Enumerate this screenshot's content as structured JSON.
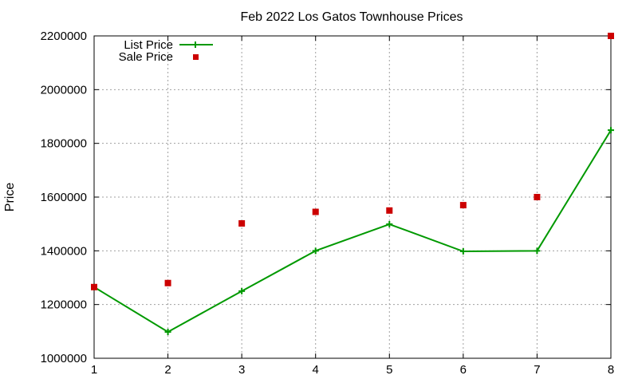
{
  "chart_data": {
    "type": "line",
    "title": "Feb 2022 Los Gatos Townhouse Prices",
    "xlabel": "",
    "ylabel": "Price",
    "xlim": [
      1,
      8
    ],
    "ylim": [
      1000000,
      2200000
    ],
    "x_ticks": [
      1,
      2,
      3,
      4,
      5,
      6,
      7,
      8
    ],
    "y_ticks": [
      1000000,
      1200000,
      1400000,
      1600000,
      1800000,
      2000000,
      2200000
    ],
    "grid": true,
    "legend_position": "top-left",
    "series": [
      {
        "name": "List Price",
        "style": "lines+points",
        "color": "#009900",
        "x": [
          1,
          2,
          3,
          4,
          5,
          6,
          7,
          8
        ],
        "values": [
          1265000,
          1098000,
          1250000,
          1400000,
          1499000,
          1398000,
          1400000,
          1849000
        ]
      },
      {
        "name": "Sale Price",
        "style": "points",
        "color": "#cc0000",
        "x": [
          1,
          2,
          3,
          4,
          5,
          6,
          7,
          8
        ],
        "values": [
          1265000,
          1280000,
          1502000,
          1545000,
          1550000,
          1570000,
          1600000,
          2200000
        ]
      }
    ]
  }
}
